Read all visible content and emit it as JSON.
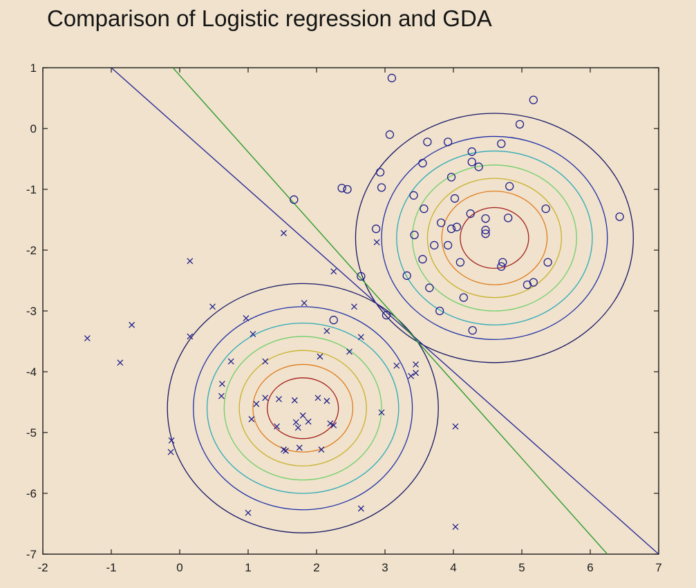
{
  "title": "Comparison of Logistic regression and GDA",
  "chart_data": {
    "type": "scatter",
    "title": "Comparison of Logistic regression and GDA",
    "xlim": [
      -2,
      7
    ],
    "ylim": [
      -7,
      1
    ],
    "xticks": [
      -2,
      -1,
      0,
      1,
      2,
      3,
      4,
      5,
      6,
      7
    ],
    "yticks": [
      1,
      0,
      -1,
      -2,
      -3,
      -4,
      -5,
      -6,
      -7
    ],
    "grid": false,
    "colors": {
      "markers": "#1f1f8c",
      "logistic_line": "#2a2a9a",
      "gda_line": "#2e9a2e",
      "contours": [
        "#151566",
        "#1f2fa8",
        "#2aa9b8",
        "#6fcf6a",
        "#c9b02a",
        "#e07b1d",
        "#a21d1d",
        "#6a1010"
      ]
    },
    "series": [
      {
        "marker": "x",
        "points": [
          [
            -1.35,
            -3.45
          ],
          [
            -0.87,
            -3.85
          ],
          [
            -0.7,
            -3.23
          ],
          [
            -0.12,
            -5.13
          ],
          [
            -0.13,
            -5.32
          ],
          [
            0.15,
            -2.18
          ],
          [
            0.15,
            -3.42
          ],
          [
            0.48,
            -2.93
          ],
          [
            0.62,
            -4.2
          ],
          [
            0.61,
            -4.4
          ],
          [
            0.75,
            -3.83
          ],
          [
            0.97,
            -3.12
          ],
          [
            1.05,
            -4.78
          ],
          [
            1.07,
            -3.38
          ],
          [
            1.12,
            -4.53
          ],
          [
            1.25,
            -3.83
          ],
          [
            1.25,
            -4.43
          ],
          [
            1.42,
            -4.9
          ],
          [
            1.45,
            -4.45
          ],
          [
            1.52,
            -1.72
          ],
          [
            1.52,
            -5.28
          ],
          [
            1.55,
            -5.3
          ],
          [
            1.68,
            -4.47
          ],
          [
            1.7,
            -4.83
          ],
          [
            1.73,
            -4.92
          ],
          [
            1.75,
            -5.25
          ],
          [
            1.8,
            -4.72
          ],
          [
            1.82,
            -2.87
          ],
          [
            1.88,
            -4.82
          ],
          [
            2.02,
            -4.43
          ],
          [
            2.05,
            -3.75
          ],
          [
            2.07,
            -5.28
          ],
          [
            2.15,
            -4.48
          ],
          [
            2.15,
            -3.33
          ],
          [
            2.2,
            -4.85
          ],
          [
            2.25,
            -4.88
          ],
          [
            2.25,
            -2.35
          ],
          [
            2.48,
            -3.67
          ],
          [
            2.55,
            -2.93
          ],
          [
            2.65,
            -3.43
          ],
          [
            2.65,
            -6.25
          ],
          [
            2.88,
            -1.87
          ],
          [
            2.95,
            -4.67
          ],
          [
            3.17,
            -3.9
          ],
          [
            3.38,
            -4.07
          ],
          [
            3.45,
            -3.88
          ],
          [
            3.45,
            -4.02
          ],
          [
            4.03,
            -4.9
          ],
          [
            4.03,
            -6.55
          ],
          [
            1.0,
            -6.32
          ]
        ]
      },
      {
        "marker": "o",
        "points": [
          [
            3.1,
            0.83
          ],
          [
            5.17,
            0.47
          ],
          [
            4.97,
            0.07
          ],
          [
            3.07,
            -0.1
          ],
          [
            3.62,
            -0.22
          ],
          [
            3.92,
            -0.22
          ],
          [
            4.7,
            -0.25
          ],
          [
            4.27,
            -0.38
          ],
          [
            4.27,
            -0.55
          ],
          [
            3.55,
            -0.57
          ],
          [
            4.37,
            -0.63
          ],
          [
            2.93,
            -0.72
          ],
          [
            3.97,
            -0.8
          ],
          [
            2.37,
            -0.98
          ],
          [
            2.45,
            -1.0
          ],
          [
            2.95,
            -0.97
          ],
          [
            4.82,
            -0.95
          ],
          [
            3.42,
            -1.1
          ],
          [
            1.67,
            -1.17
          ],
          [
            4.02,
            -1.15
          ],
          [
            3.57,
            -1.32
          ],
          [
            5.35,
            -1.32
          ],
          [
            4.25,
            -1.4
          ],
          [
            6.43,
            -1.45
          ],
          [
            4.47,
            -1.48
          ],
          [
            4.8,
            -1.47
          ],
          [
            3.82,
            -1.55
          ],
          [
            4.05,
            -1.62
          ],
          [
            3.97,
            -1.65
          ],
          [
            4.47,
            -1.67
          ],
          [
            2.87,
            -1.65
          ],
          [
            4.47,
            -1.73
          ],
          [
            3.43,
            -1.75
          ],
          [
            3.72,
            -1.92
          ],
          [
            3.92,
            -1.92
          ],
          [
            3.55,
            -2.15
          ],
          [
            4.1,
            -2.2
          ],
          [
            4.72,
            -2.2
          ],
          [
            4.7,
            -2.27
          ],
          [
            5.38,
            -2.2
          ],
          [
            2.65,
            -2.43
          ],
          [
            3.32,
            -2.42
          ],
          [
            5.17,
            -2.53
          ],
          [
            5.08,
            -2.57
          ],
          [
            3.65,
            -2.62
          ],
          [
            4.15,
            -2.78
          ],
          [
            3.8,
            -3.0
          ],
          [
            3.02,
            -3.07
          ],
          [
            2.25,
            -3.15
          ],
          [
            4.28,
            -3.32
          ]
        ]
      }
    ],
    "gaussians": [
      {
        "mean": [
          1.8,
          -4.6
        ],
        "radii_x": [
          1.98,
          1.6,
          1.4,
          1.15,
          0.93,
          0.73,
          0.52
        ],
        "radii_y": [
          2.05,
          1.67,
          1.4,
          1.18,
          0.95,
          0.72,
          0.5
        ]
      },
      {
        "mean": [
          4.6,
          -1.8
        ],
        "radii_x": [
          2.03,
          1.65,
          1.43,
          1.2,
          0.98,
          0.77,
          0.5
        ],
        "radii_y": [
          2.05,
          1.67,
          1.43,
          1.2,
          0.98,
          0.77,
          0.5
        ]
      }
    ],
    "lines": [
      {
        "name_key": "logistic_line",
        "from": [
          -1.0,
          1.0
        ],
        "to": [
          7.0,
          -7.0
        ]
      },
      {
        "name_key": "gda_line",
        "from": [
          -0.1,
          1.0
        ],
        "to": [
          6.25,
          -7.0
        ]
      }
    ]
  }
}
